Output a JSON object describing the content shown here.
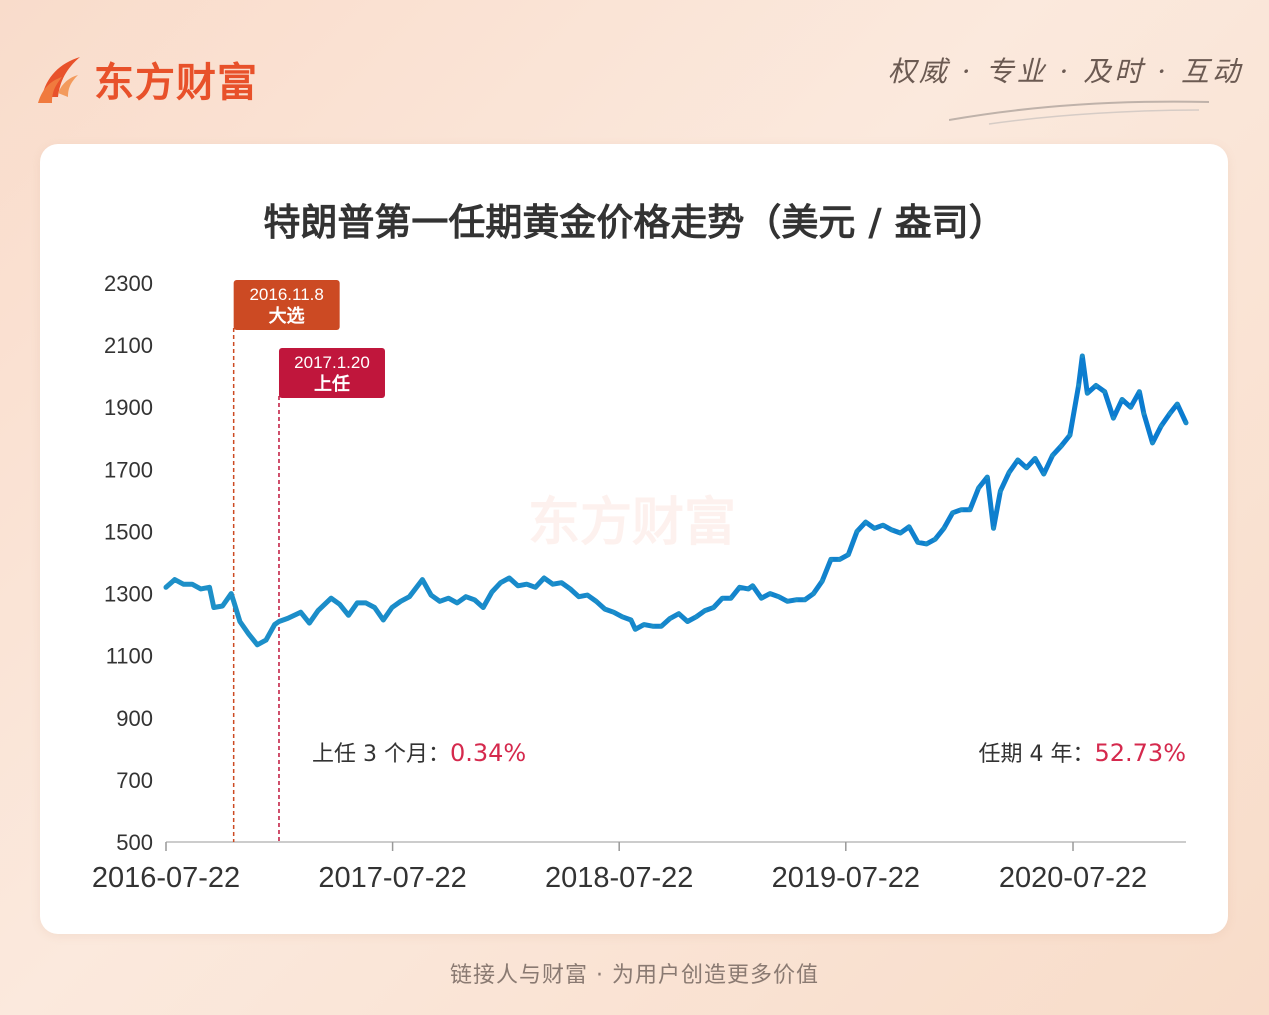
{
  "brand": {
    "name": "东方财富",
    "slogan": "权威 · 专业 · 及时 · 互动",
    "watermark": "东方财富",
    "footer": "链接人与财富 · 为用户创造更多价值",
    "accent": "#e8512a"
  },
  "chart_data": {
    "type": "line",
    "title": "特朗普第一任期黄金价格走势（美元 / 盎司）",
    "xlabel": "",
    "ylabel": "",
    "ylim": [
      500,
      2300
    ],
    "yticks": [
      500,
      700,
      900,
      1100,
      1300,
      1500,
      1700,
      1900,
      2100,
      2300
    ],
    "xticks": [
      "2016-07-22",
      "2017-07-22",
      "2018-07-22",
      "2019-07-22",
      "2020-07-22"
    ],
    "xlim": [
      "2016-07-22",
      "2021-01-20"
    ],
    "series_color": "#1e90c8",
    "series_color_end": "#0a7bd0",
    "series": [
      {
        "name": "",
        "x": [
          "2016-07-22",
          "2016-08-05",
          "2016-08-19",
          "2016-09-02",
          "2016-09-16",
          "2016-09-30",
          "2016-10-07",
          "2016-10-21",
          "2016-11-04",
          "2016-11-08",
          "2016-11-18",
          "2016-12-02",
          "2016-12-16",
          "2016-12-30",
          "2017-01-13",
          "2017-01-20",
          "2017-02-03",
          "2017-02-24",
          "2017-03-10",
          "2017-03-24",
          "2017-04-14",
          "2017-04-28",
          "2017-05-12",
          "2017-05-26",
          "2017-06-09",
          "2017-06-23",
          "2017-07-07",
          "2017-07-21",
          "2017-08-04",
          "2017-08-18",
          "2017-09-08",
          "2017-09-22",
          "2017-10-06",
          "2017-10-20",
          "2017-11-03",
          "2017-11-17",
          "2017-12-01",
          "2017-12-15",
          "2017-12-29",
          "2018-01-12",
          "2018-01-26",
          "2018-02-09",
          "2018-02-23",
          "2018-03-09",
          "2018-03-23",
          "2018-04-06",
          "2018-04-20",
          "2018-05-04",
          "2018-05-18",
          "2018-06-01",
          "2018-06-15",
          "2018-06-29",
          "2018-07-13",
          "2018-07-27",
          "2018-08-10",
          "2018-08-17",
          "2018-08-31",
          "2018-09-14",
          "2018-09-28",
          "2018-10-12",
          "2018-10-26",
          "2018-11-09",
          "2018-11-23",
          "2018-12-07",
          "2018-12-21",
          "2019-01-04",
          "2019-01-18",
          "2019-02-01",
          "2019-02-15",
          "2019-02-22",
          "2019-03-08",
          "2019-03-22",
          "2019-04-05",
          "2019-04-19",
          "2019-05-03",
          "2019-05-17",
          "2019-05-31",
          "2019-06-14",
          "2019-06-28",
          "2019-07-12",
          "2019-07-26",
          "2019-08-09",
          "2019-08-23",
          "2019-09-06",
          "2019-09-20",
          "2019-10-04",
          "2019-10-18",
          "2019-11-01",
          "2019-11-15",
          "2019-11-29",
          "2019-12-13",
          "2019-12-27",
          "2020-01-10",
          "2020-01-24",
          "2020-02-07",
          "2020-02-21",
          "2020-03-06",
          "2020-03-16",
          "2020-03-27",
          "2020-04-10",
          "2020-04-24",
          "2020-05-08",
          "2020-05-22",
          "2020-06-05",
          "2020-06-19",
          "2020-07-03",
          "2020-07-17",
          "2020-07-31",
          "2020-08-06",
          "2020-08-14",
          "2020-08-28",
          "2020-09-11",
          "2020-09-25",
          "2020-10-09",
          "2020-10-23",
          "2020-11-06",
          "2020-11-13",
          "2020-11-27",
          "2020-12-11",
          "2020-12-25",
          "2021-01-06",
          "2021-01-20"
        ],
        "values": [
          1320,
          1345,
          1330,
          1330,
          1315,
          1320,
          1255,
          1260,
          1300,
          1275,
          1210,
          1170,
          1135,
          1150,
          1200,
          1210,
          1220,
          1240,
          1205,
          1245,
          1285,
          1265,
          1230,
          1270,
          1270,
          1255,
          1215,
          1255,
          1275,
          1290,
          1345,
          1295,
          1275,
          1285,
          1270,
          1290,
          1280,
          1255,
          1305,
          1335,
          1350,
          1325,
          1330,
          1320,
          1350,
          1330,
          1335,
          1315,
          1290,
          1295,
          1275,
          1250,
          1240,
          1225,
          1215,
          1185,
          1200,
          1195,
          1195,
          1220,
          1235,
          1210,
          1225,
          1245,
          1255,
          1285,
          1285,
          1320,
          1315,
          1325,
          1285,
          1300,
          1290,
          1275,
          1280,
          1280,
          1300,
          1340,
          1410,
          1410,
          1425,
          1500,
          1530,
          1510,
          1520,
          1505,
          1495,
          1515,
          1465,
          1460,
          1475,
          1510,
          1560,
          1570,
          1570,
          1640,
          1675,
          1510,
          1630,
          1690,
          1730,
          1705,
          1735,
          1685,
          1745,
          1775,
          1810,
          1970,
          2065,
          1945,
          1970,
          1950,
          1865,
          1925,
          1900,
          1950,
          1880,
          1785,
          1840,
          1880,
          1910,
          1850
        ]
      }
    ],
    "events": [
      {
        "date": "2016-11-08",
        "date_label": "2016.11.8",
        "label": "大选",
        "color": "#cc4a23"
      },
      {
        "date": "2017-01-20",
        "date_label": "2017.1.20",
        "label": "上任",
        "color": "#c0163c"
      }
    ],
    "annotations": [
      {
        "label": "上任 3 个月：",
        "value": "0.34%",
        "anchor": "left"
      },
      {
        "label": "任期 4 年：",
        "value": "52.73%",
        "anchor": "right"
      }
    ],
    "annotation_value_color": "#d5294d"
  }
}
